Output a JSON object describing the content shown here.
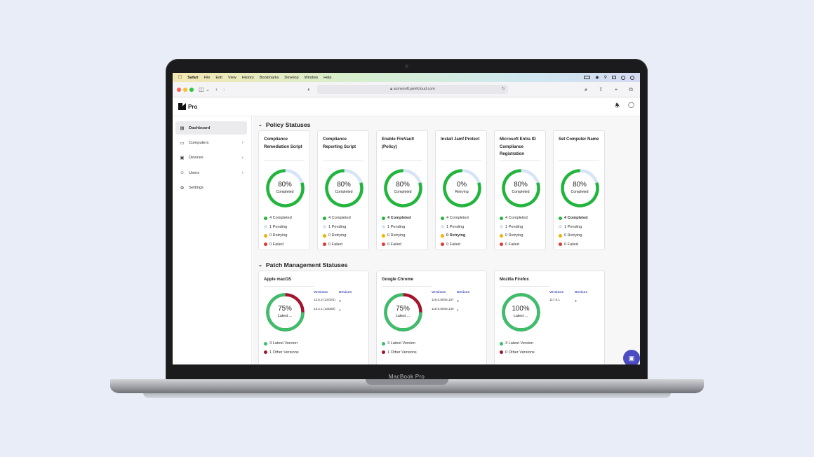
{
  "laptop": {
    "label": "MacBook Pro"
  },
  "menubar": {
    "items": [
      "Safari",
      "File",
      "Edit",
      "View",
      "History",
      "Bookmarks",
      "Develop",
      "Window",
      "Help"
    ]
  },
  "browser": {
    "url": "acmesoft.jamfcloud.com"
  },
  "app": {
    "logo_text": "Pro"
  },
  "sidebar": {
    "items": [
      {
        "label": "Dashboard",
        "icon": "grid-icon",
        "active": true,
        "chevron": false
      },
      {
        "label": "Computers",
        "icon": "laptop-icon",
        "active": false,
        "chevron": true
      },
      {
        "label": "Devices",
        "icon": "devices-icon",
        "active": false,
        "chevron": true
      },
      {
        "label": "Users",
        "icon": "users-icon",
        "active": false,
        "chevron": true
      },
      {
        "label": "Settings",
        "icon": "gear-icon",
        "active": false,
        "chevron": false
      }
    ]
  },
  "policy": {
    "title": "Policy Statuses",
    "cards": [
      {
        "title": "Compliance Remediation Script",
        "percent": "80%",
        "center_label": "Completed",
        "fraction": 0.8,
        "legend": [
          "4 Completed",
          "1 Pending",
          "0 Retrying",
          "0 Failed"
        ],
        "bold_row": -1
      },
      {
        "title": "Compliance Reporting Script",
        "percent": "80%",
        "center_label": "Completed",
        "fraction": 0.8,
        "legend": [
          "4 Completed",
          "1 Pending",
          "0 Retrying",
          "0 Failed"
        ],
        "bold_row": -1
      },
      {
        "title": "Enable FileVault (Policy)",
        "percent": "80%",
        "center_label": "Completed",
        "fraction": 0.8,
        "legend": [
          "4 Completed",
          "1 Pending",
          "0 Retrying",
          "0 Failed"
        ],
        "bold_row": 0
      },
      {
        "title": "Install Jamf Protect",
        "percent": "0%",
        "center_label": "Retrying",
        "fraction": 0.8,
        "legend": [
          "4 Completed",
          "1 Pending",
          "0 Retrying",
          "0 Failed"
        ],
        "bold_row": 2
      },
      {
        "title": "Microsoft Entra ID Compliance Registration",
        "percent": "80%",
        "center_label": "Completed",
        "fraction": 0.8,
        "legend": [
          "4 Completed",
          "1 Pending",
          "0 Retrying",
          "0 Failed"
        ],
        "bold_row": -1
      },
      {
        "title": "Set Computer Name",
        "percent": "80%",
        "center_label": "Completed",
        "fraction": 0.8,
        "legend": [
          "4 Completed",
          "1 Pending",
          "0 Retrying",
          "0 Failed"
        ],
        "bold_row": 0
      }
    ],
    "colors": {
      "completed": "#22b53c",
      "pending": "#d6e4f7",
      "retrying": "#f2b300",
      "failed": "#e0382f"
    }
  },
  "patch": {
    "title": "Patch Management Statuses",
    "col_versions": "Versions",
    "col_devices": "Devices",
    "cards": [
      {
        "title": "Apple macOS",
        "percent": "75%",
        "center_label": "Latest ...",
        "fraction": 0.75,
        "rows": [
          {
            "version": "13.5.2 (22G91)",
            "devices": "3"
          },
          {
            "version": "13.2.1 (22D68)",
            "devices": "1"
          }
        ],
        "legend": [
          "3 Latest Version",
          "1 Other Versions"
        ]
      },
      {
        "title": "Google Chrome",
        "percent": "75%",
        "center_label": "Latest ...",
        "fraction": 0.75,
        "rows": [
          {
            "version": "116.0.5845.187",
            "devices": "3"
          },
          {
            "version": "116.0.5845.140",
            "devices": "1"
          }
        ],
        "legend": [
          "3 Latest Version",
          "1 Other Versions"
        ]
      },
      {
        "title": "Mozilla Firefox",
        "percent": "100%",
        "center_label": "Latest ...",
        "fraction": 1.0,
        "rows": [
          {
            "version": "117.0.1",
            "devices": "3"
          }
        ],
        "legend": [
          "3 Latest Version",
          "0 Other Versions"
        ]
      }
    ],
    "colors": {
      "latest": "#3cbf6b",
      "other": "#a3142c"
    }
  }
}
